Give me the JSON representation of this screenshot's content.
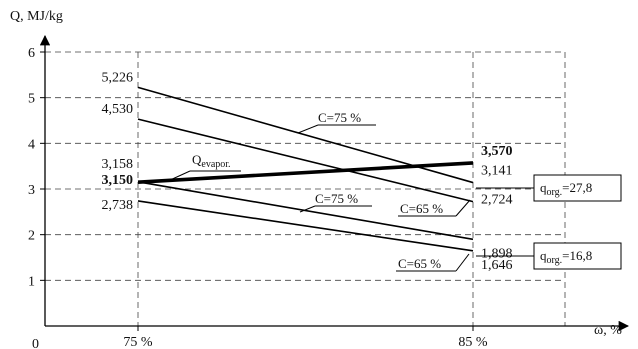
{
  "chart_data": {
    "type": "line",
    "ylabel": "Q, MJ/kg",
    "xlabel": "ω, %",
    "origin_label": "0",
    "ylim": [
      0,
      6
    ],
    "yticks": [
      "1",
      "2",
      "3",
      "4",
      "5",
      "6"
    ],
    "x": [
      75,
      85
    ],
    "xtick_labels": [
      "75 %",
      "85 %"
    ],
    "grid": true,
    "series": [
      {
        "values": [
          5.226,
          3.141
        ],
        "labels": [
          "5,226",
          "3,141"
        ],
        "bold": false
      },
      {
        "values": [
          4.53,
          2.724
        ],
        "labels": [
          "4,530",
          "2,724"
        ],
        "bold": false
      },
      {
        "values": [
          3.158,
          1.898
        ],
        "labels": [
          "3,158",
          "1,898"
        ],
        "bold": false
      },
      {
        "values": [
          2.738,
          1.646
        ],
        "labels": [
          "2,738",
          "1,646"
        ],
        "bold": false
      },
      {
        "values": [
          3.15,
          3.57
        ],
        "labels": [
          "3,150",
          "3,570"
        ],
        "bold": true
      }
    ],
    "annotations": {
      "c75_top": "C=75 %",
      "c65_top": "C=65 %",
      "c75_bottom": "C=75 %",
      "c65_bottom": "C=65 %",
      "evap_main": "Q",
      "evap_sub": "evapor.",
      "qorg_high_main": "q",
      "qorg_high_sub": "org.",
      "qorg_high_value": "=27,8",
      "qorg_low_main": "q",
      "qorg_low_sub": "org.",
      "qorg_low_value": "=16,8"
    }
  }
}
